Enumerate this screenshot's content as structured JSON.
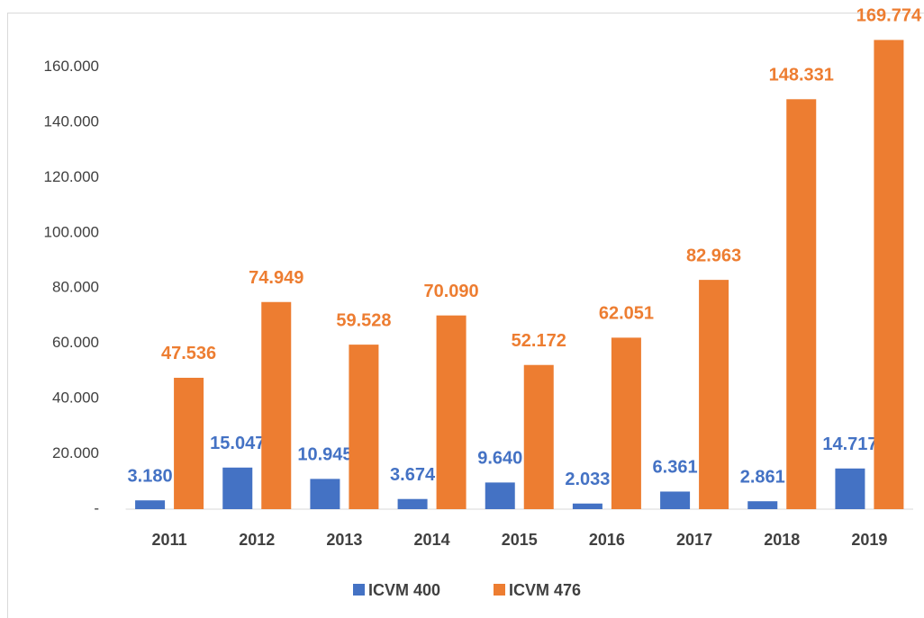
{
  "chart_data": {
    "type": "bar",
    "categories": [
      "2011",
      "2012",
      "2013",
      "2014",
      "2015",
      "2016",
      "2017",
      "2018",
      "2019"
    ],
    "series": [
      {
        "name": "ICVM 400",
        "color": "#4472c4",
        "values": [
          3180,
          15047,
          10945,
          3674,
          9640,
          2033,
          6361,
          2861,
          14717
        ],
        "value_labels": [
          "3.180",
          "15.047",
          "10.945",
          "3.674",
          "9.640",
          "2.033",
          "6.361",
          "2.861",
          "14.717"
        ]
      },
      {
        "name": "ICVM 476",
        "color": "#ed7d31",
        "values": [
          47536,
          74949,
          59528,
          70090,
          52172,
          62051,
          82963,
          148331,
          169774
        ],
        "value_labels": [
          "47.536",
          "74.949",
          "59.528",
          "70.090",
          "52.172",
          "62.051",
          "82.963",
          "148.331",
          "169.774"
        ]
      }
    ],
    "ylim": [
      0,
      180000
    ],
    "yticks": [
      {
        "value": 0,
        "label": "-"
      },
      {
        "value": 20000,
        "label": "20.000"
      },
      {
        "value": 40000,
        "label": "40.000"
      },
      {
        "value": 60000,
        "label": "60.000"
      },
      {
        "value": 80000,
        "label": "80.000"
      },
      {
        "value": 100000,
        "label": "100.000"
      },
      {
        "value": 120000,
        "label": "120.000"
      },
      {
        "value": 140000,
        "label": "140.000"
      },
      {
        "value": 160000,
        "label": "160.000"
      }
    ],
    "grid": false,
    "legend": "bottom"
  }
}
